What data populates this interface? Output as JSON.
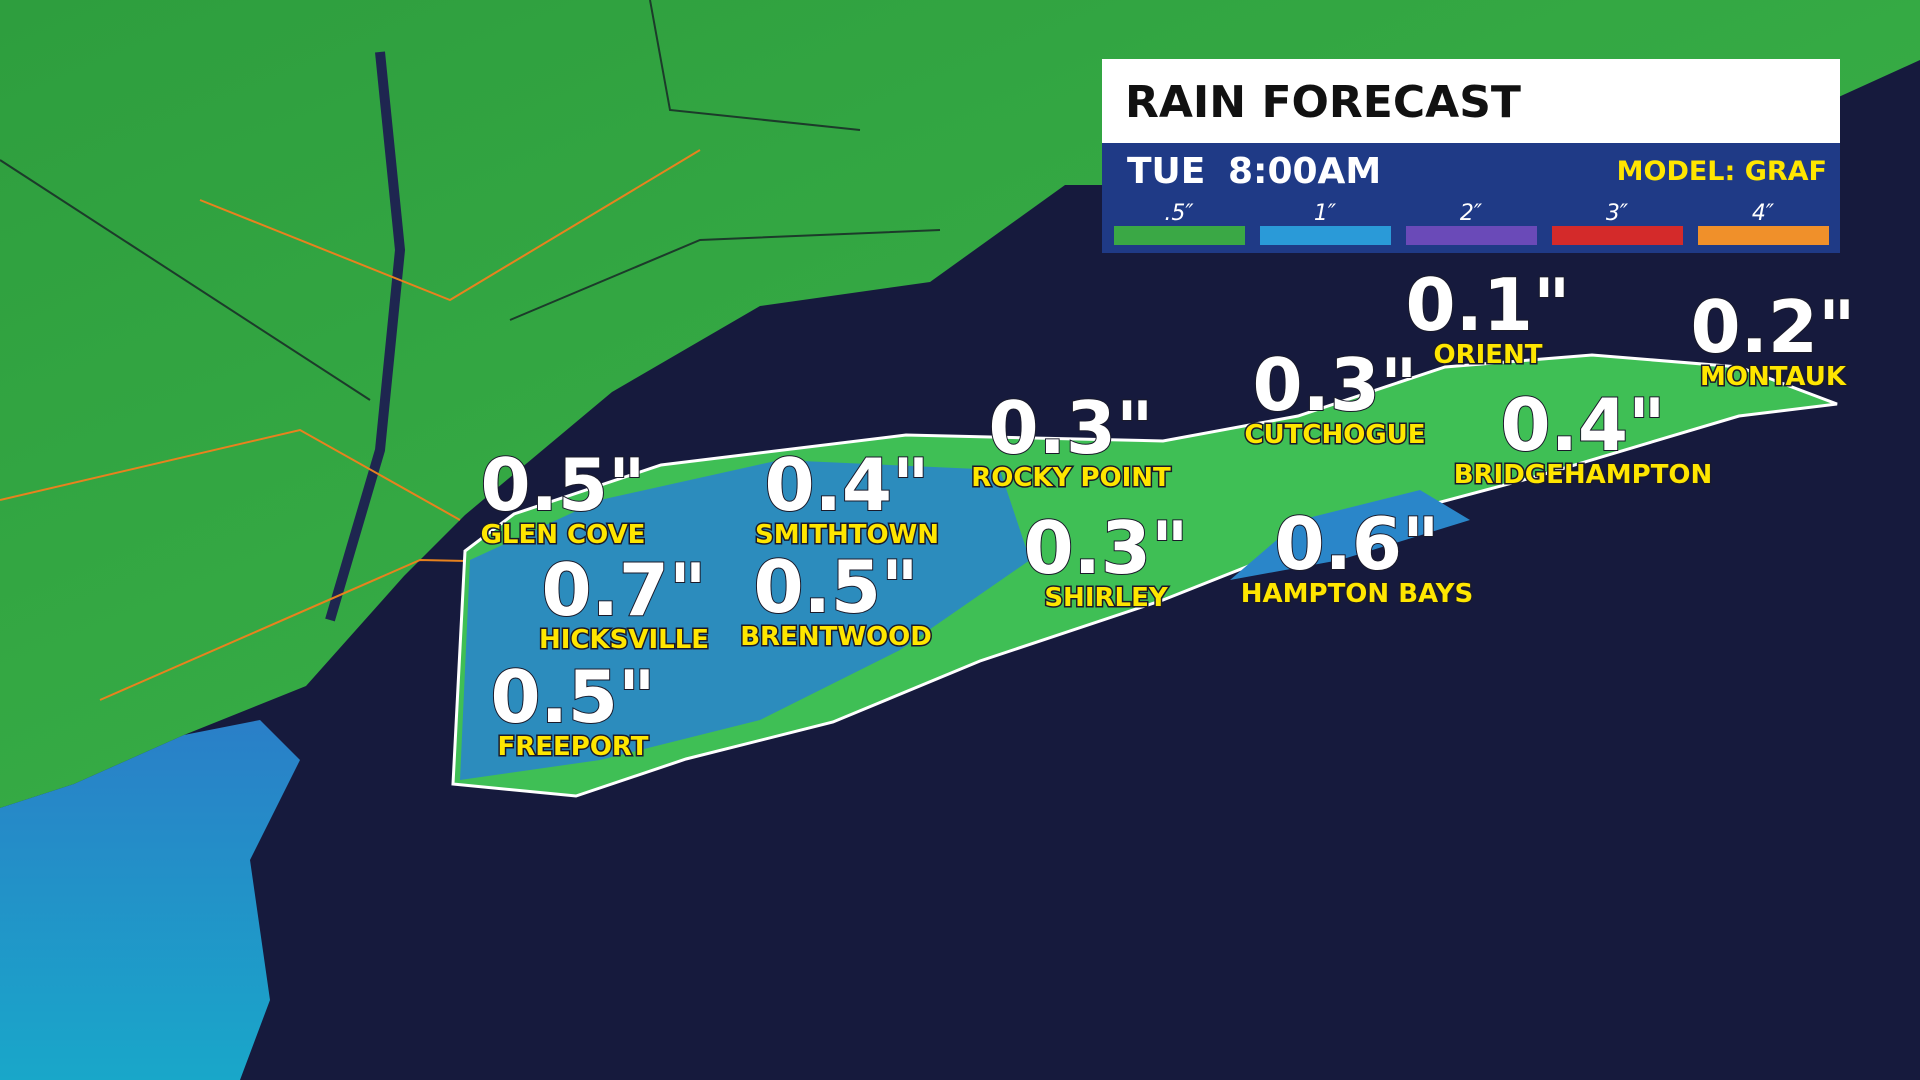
{
  "header": {
    "title": "RAIN FORECAST",
    "day": "TUE",
    "time": "8:00AM",
    "model": "MODEL: GRAF"
  },
  "legend": [
    {
      "label": ".5″",
      "color": "#3aa845"
    },
    {
      "label": "1″",
      "color": "#2a9ad8"
    },
    {
      "label": "2″",
      "color": "#6a4ab8"
    },
    {
      "label": "3″",
      "color": "#d42a2a"
    },
    {
      "label": "4″",
      "color": "#f0902a"
    }
  ],
  "cities": [
    {
      "name": "GLEN COVE",
      "value": "0.5\""
    },
    {
      "name": "SMITHTOWN",
      "value": "0.4\""
    },
    {
      "name": "ROCKY POINT",
      "value": "0.3\""
    },
    {
      "name": "CUTCHOGUE",
      "value": "0.3\""
    },
    {
      "name": "ORIENT",
      "value": "0.1\""
    },
    {
      "name": "MONTAUK",
      "value": "0.2\""
    },
    {
      "name": "BRIDGEHAMPTON",
      "value": "0.4\""
    },
    {
      "name": "HICKSVILLE",
      "value": "0.7\""
    },
    {
      "name": "BRENTWOOD",
      "value": "0.5\""
    },
    {
      "name": "SHIRLEY",
      "value": "0.3\""
    },
    {
      "name": "HAMPTON BAYS",
      "value": "0.6\""
    },
    {
      "name": "FREEPORT",
      "value": "0.5\""
    }
  ]
}
